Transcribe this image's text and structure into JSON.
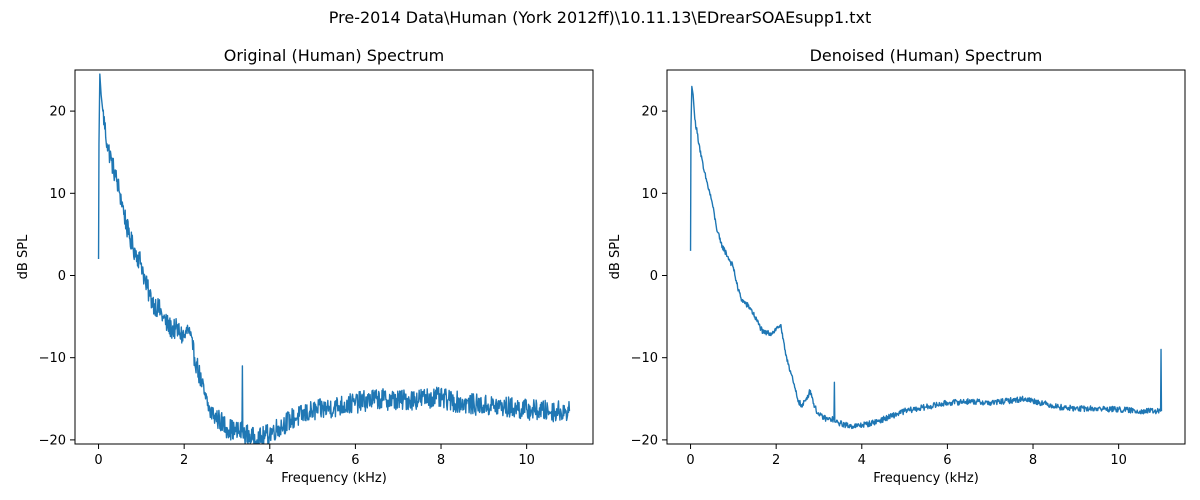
{
  "figure": {
    "suptitle": "Pre-2014 Data\\Human (York 2012ff)\\10.11.13\\EDrearSOAEsupp1.txt"
  },
  "colors": {
    "line": "#1f77b4",
    "axes": "#000000",
    "background": "#ffffff"
  },
  "chart_data": [
    {
      "type": "line",
      "title": "Original (Human) Spectrum",
      "xlabel": "Frequency (kHz)",
      "ylabel": "dB SPL",
      "xlim": [
        -0.55,
        11.55
      ],
      "ylim": [
        -20.5,
        25
      ],
      "xticks": [
        0,
        2,
        4,
        6,
        8,
        10
      ],
      "yticks": [
        -20,
        -10,
        0,
        10,
        20
      ],
      "grid": false,
      "series": [
        {
          "x": [
            0.0,
            0.01,
            0.03,
            0.06,
            0.1,
            0.2,
            0.3,
            0.4,
            0.5,
            0.6,
            0.7,
            0.8,
            0.9,
            1.0,
            1.1,
            1.2,
            1.3,
            1.4,
            1.5,
            1.6,
            1.7,
            1.8,
            1.9,
            2.0,
            2.1,
            2.2,
            2.3,
            2.4,
            2.5,
            2.6,
            2.7,
            2.8,
            2.9,
            3.0,
            3.2,
            3.35,
            3.36,
            3.37,
            3.5,
            3.7,
            3.9,
            4.2,
            4.5,
            5.0,
            5.5,
            6.0,
            6.5,
            7.0,
            7.5,
            7.8,
            8.2,
            8.6,
            9.0,
            9.5,
            10.0,
            10.5,
            11.0
          ],
          "y": [
            2.0,
            16.0,
            24.5,
            22.0,
            20.0,
            16.0,
            14.0,
            12.0,
            10.0,
            7.5,
            5.0,
            3.5,
            2.5,
            1.5,
            -1.0,
            -2.5,
            -3.5,
            -4.0,
            -5.0,
            -6.0,
            -6.5,
            -6.5,
            -7.0,
            -7.5,
            -6.5,
            -9.0,
            -11.0,
            -13.0,
            -15.0,
            -16.5,
            -17.0,
            -17.5,
            -18.0,
            -18.5,
            -19.0,
            -19.0,
            -11.0,
            -19.0,
            -19.5,
            -20.0,
            -19.5,
            -18.5,
            -17.5,
            -16.5,
            -16.0,
            -15.5,
            -15.0,
            -15.2,
            -15.0,
            -14.8,
            -15.2,
            -15.6,
            -15.8,
            -16.0,
            -16.3,
            -16.5,
            -16.5
          ]
        }
      ]
    },
    {
      "type": "line",
      "title": "Denoised (Human) Spectrum",
      "xlabel": "Frequency (kHz)",
      "ylabel": "dB SPL",
      "xlim": [
        -0.55,
        11.55
      ],
      "ylim": [
        -20.5,
        25
      ],
      "xticks": [
        0,
        2,
        4,
        6,
        8,
        10
      ],
      "yticks": [
        -20,
        -10,
        0,
        10,
        20
      ],
      "grid": false,
      "series": [
        {
          "x": [
            0.0,
            0.01,
            0.03,
            0.06,
            0.1,
            0.2,
            0.3,
            0.4,
            0.5,
            0.6,
            0.7,
            0.8,
            0.9,
            1.0,
            1.1,
            1.2,
            1.3,
            1.4,
            1.5,
            1.6,
            1.7,
            1.8,
            1.9,
            2.0,
            2.1,
            2.2,
            2.3,
            2.4,
            2.5,
            2.6,
            2.7,
            2.8,
            2.9,
            3.0,
            3.2,
            3.35,
            3.36,
            3.37,
            3.5,
            3.7,
            3.9,
            4.2,
            4.5,
            5.0,
            5.5,
            6.0,
            6.5,
            7.0,
            7.5,
            7.8,
            8.2,
            8.6,
            9.0,
            9.5,
            10.0,
            10.5,
            10.98,
            10.99,
            11.0
          ],
          "y": [
            3.0,
            18.0,
            23.0,
            22.0,
            19.0,
            16.0,
            13.0,
            11.0,
            9.0,
            6.0,
            4.0,
            3.0,
            2.0,
            1.0,
            -1.5,
            -3.0,
            -3.5,
            -4.0,
            -5.0,
            -6.0,
            -7.0,
            -7.0,
            -7.0,
            -6.5,
            -6.0,
            -9.0,
            -11.0,
            -13.0,
            -15.0,
            -16.0,
            -15.0,
            -14.0,
            -16.0,
            -17.0,
            -17.5,
            -17.5,
            -13.0,
            -17.8,
            -18.0,
            -18.3,
            -18.3,
            -18.0,
            -17.5,
            -16.5,
            -16.0,
            -15.5,
            -15.3,
            -15.5,
            -15.2,
            -15.0,
            -15.5,
            -16.0,
            -16.2,
            -16.2,
            -16.3,
            -16.5,
            -16.5,
            -9.0,
            -16.5
          ]
        }
      ]
    }
  ]
}
